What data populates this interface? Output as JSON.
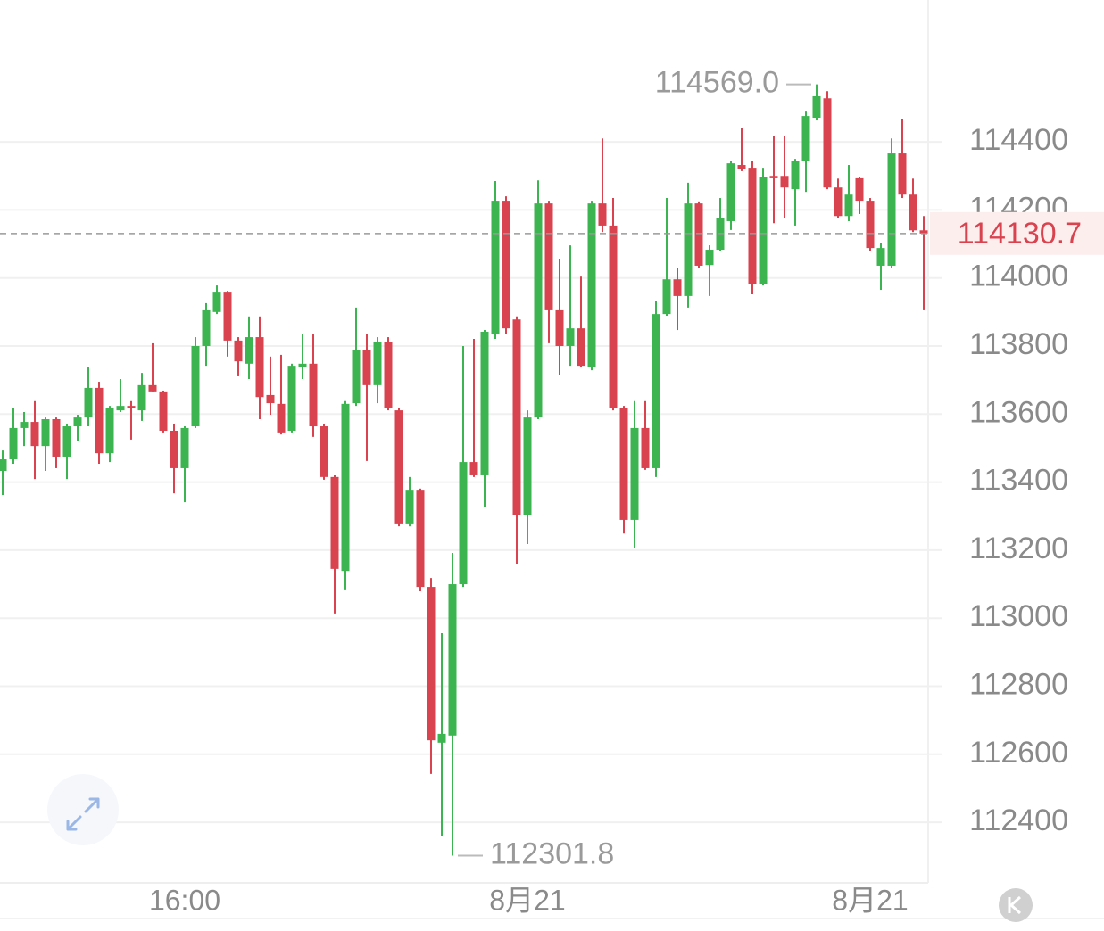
{
  "chart_data": {
    "type": "candlestick",
    "categories": [
      null,
      null,
      null,
      null,
      null,
      null,
      null,
      null,
      null,
      null,
      null,
      null,
      null,
      null,
      null,
      null,
      null,
      "16:00",
      null,
      null,
      null,
      null,
      null,
      null,
      null,
      null,
      null,
      null,
      null,
      null,
      null,
      null,
      null,
      null,
      null,
      null,
      null,
      null,
      null,
      null,
      null,
      null,
      null,
      null,
      null,
      null,
      null,
      null,
      null,
      "8月21",
      null,
      null,
      null,
      null,
      null,
      null,
      null,
      null,
      null,
      null,
      null,
      null,
      null,
      null,
      null,
      null,
      null,
      null,
      null,
      null,
      null,
      null,
      null,
      null,
      null,
      null,
      null,
      null,
      null,
      null,
      null,
      "8月21",
      null,
      null,
      null,
      null,
      null
    ],
    "open": [
      113433,
      113467,
      113559,
      113577,
      113506,
      113585,
      113475,
      113564,
      113590,
      113677,
      113485,
      113611,
      113624,
      113611,
      113685,
      113664,
      113551,
      113441,
      113564,
      113800,
      113900,
      113957,
      113816,
      113748,
      113826,
      113656,
      113630,
      113551,
      113737,
      113748,
      113564,
      113415,
      113139,
      113632,
      113787,
      113685,
      113813,
      113611,
      113276,
      113375,
      113092,
      112634,
      112655,
      113100,
      113459,
      113420,
      113834,
      114227,
      113878,
      113302,
      113590,
      114219,
      113905,
      113800,
      113852,
      113737,
      114219,
      114154,
      113617,
      113289,
      113559,
      113441,
      113894,
      113996,
      113947,
      114219,
      114038,
      114083,
      114167,
      114332,
      114324,
      113983,
      114300,
      114300,
      114261,
      114345,
      114471,
      114528,
      114266,
      114182,
      114293,
      114227,
      114036,
      114036,
      114366,
      114245,
      114140
    ],
    "high": [
      113493,
      113617,
      113606,
      113638,
      113590,
      113590,
      113572,
      113598,
      113737,
      113695,
      113624,
      113703,
      113638,
      113721,
      113808,
      113669,
      113572,
      113564,
      113826,
      113926,
      113978,
      113962,
      113826,
      113887,
      113887,
      113769,
      113774,
      113748,
      113834,
      113834,
      113572,
      113420,
      113638,
      113913,
      113834,
      113826,
      113826,
      113617,
      113415,
      113381,
      113118,
      112956,
      113192,
      113800,
      113821,
      113847,
      114285,
      114240,
      113887,
      113611,
      114287,
      114227,
      114057,
      114096,
      114004,
      114227,
      114410,
      114235,
      113624,
      113638,
      113638,
      113931,
      114235,
      114030,
      114280,
      114225,
      114096,
      114235,
      114345,
      114442,
      114345,
      114324,
      114418,
      114416,
      114350,
      114489,
      114569,
      114549,
      114292,
      114332,
      114298,
      114235,
      114104,
      114410,
      114468,
      114292,
      114182
    ],
    "low": [
      113362,
      113454,
      113506,
      113409,
      113433,
      113441,
      113409,
      113520,
      113564,
      113454,
      113459,
      113606,
      113525,
      113580,
      113664,
      113546,
      113367,
      113341,
      113559,
      113742,
      113894,
      113769,
      113711,
      113703,
      113585,
      113598,
      113540,
      113546,
      113703,
      113533,
      113407,
      113014,
      113082,
      113624,
      113462,
      113632,
      113611,
      113270,
      113270,
      113079,
      112542,
      112361,
      112301.8,
      113092,
      113415,
      113328,
      113821,
      113834,
      113160,
      113218,
      113585,
      113808,
      113716,
      113742,
      113737,
      113729,
      114135,
      113611,
      113249,
      113205,
      113436,
      113415,
      113889,
      113847,
      113913,
      114030,
      113947,
      114078,
      114141,
      114314,
      113952,
      113978,
      114161,
      114175,
      114154,
      114253,
      114463,
      114261,
      114175,
      114167,
      114188,
      114078,
      113965,
      114030,
      114235,
      114135,
      113905
    ],
    "close": [
      113467,
      113559,
      113577,
      113506,
      113585,
      113475,
      113564,
      113590,
      113677,
      113485,
      113617,
      113624,
      113617,
      113685,
      113664,
      113551,
      113441,
      113559,
      113800,
      113905,
      113957,
      113816,
      113755,
      113826,
      113650,
      113632,
      113546,
      113742,
      113748,
      113564,
      113415,
      113145,
      113630,
      113787,
      113685,
      113813,
      113617,
      113276,
      113375,
      113092,
      112641,
      112660,
      113100,
      113459,
      113420,
      113842,
      114227,
      113852,
      113302,
      113590,
      114219,
      113905,
      113800,
      113852,
      113742,
      114219,
      114154,
      113617,
      113289,
      113559,
      113441,
      113894,
      113996,
      113947,
      114219,
      114036,
      114083,
      114175,
      114337,
      114319,
      113983,
      114298,
      114293,
      114266,
      114345,
      114476,
      114534,
      114266,
      114182,
      114245,
      114227,
      114088,
      114088,
      114366,
      114245,
      114140,
      114130.7
    ],
    "up_color": "#3cb550",
    "down_color": "#d9434f",
    "ylim": [
      112222,
      114817
    ],
    "yticks": [
      112400,
      112600,
      112800,
      113000,
      113200,
      113400,
      113600,
      113800,
      114000,
      114200,
      114400
    ],
    "grid": true,
    "last_price": 114130.7,
    "annotations": [
      {
        "value": 114569,
        "label": "114569.0"
      },
      {
        "value": 112301.8,
        "label": "112301.8"
      }
    ]
  }
}
